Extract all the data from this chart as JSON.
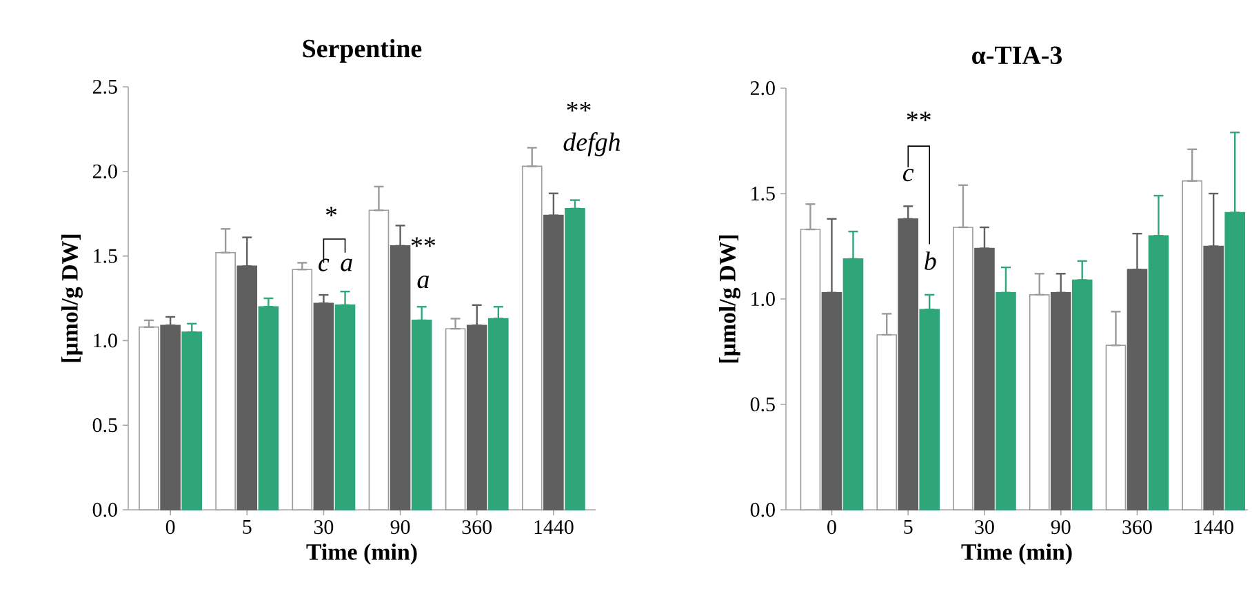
{
  "chart_data": [
    {
      "type": "bar",
      "title": "Serpentine",
      "xlabel": "Time (min)",
      "ylabel": "[μmol/g DW]",
      "categories": [
        "0",
        "5",
        "30",
        "90",
        "360",
        "1440"
      ],
      "series": [
        {
          "color": "#ffffff",
          "values": [
            1.08,
            1.52,
            1.42,
            1.77,
            1.07,
            2.03
          ],
          "errors": [
            [
              1.08,
              1.12
            ],
            [
              1.52,
              1.66
            ],
            [
              1.42,
              1.46
            ],
            [
              1.77,
              1.91
            ],
            [
              1.07,
              1.13
            ],
            [
              2.03,
              2.14
            ]
          ]
        },
        {
          "color": "#5f5f5f",
          "values": [
            1.09,
            1.44,
            1.22,
            1.56,
            1.09,
            1.74
          ],
          "errors": [
            [
              1.09,
              1.14
            ],
            [
              1.44,
              1.61
            ],
            [
              1.22,
              1.27
            ],
            [
              1.56,
              1.68
            ],
            [
              1.09,
              1.21
            ],
            [
              1.74,
              1.87
            ]
          ]
        },
        {
          "color": "#2fa57a",
          "values": [
            1.05,
            1.2,
            1.21,
            1.12,
            1.13,
            1.78
          ],
          "errors": [
            [
              1.05,
              1.1
            ],
            [
              1.2,
              1.25
            ],
            [
              1.21,
              1.29
            ],
            [
              1.12,
              1.2
            ],
            [
              1.13,
              1.2
            ],
            [
              1.78,
              1.83
            ]
          ]
        }
      ],
      "ylim": [
        0,
        2.5
      ],
      "yticks": [
        {
          "value": 0,
          "label": "0.0"
        },
        0.5,
        {
          "value": 1,
          "label": "1.0"
        },
        1.5,
        {
          "value": 2,
          "label": "2.0"
        },
        2.5
      ],
      "annotations": [
        "*",
        "c",
        "a",
        "**",
        "a",
        "**",
        "defgh"
      ]
    },
    {
      "type": "bar",
      "title": "α-TIA-3",
      "xlabel": "Time (min)",
      "ylabel": "[μmol/g DW]",
      "categories": [
        "0",
        "5",
        "30",
        "90",
        "360",
        "1440"
      ],
      "series": [
        {
          "color": "#ffffff",
          "values": [
            1.33,
            0.83,
            1.34,
            1.02,
            0.78,
            1.56
          ],
          "errors": [
            [
              1.33,
              1.45
            ],
            [
              0.83,
              0.93
            ],
            [
              1.34,
              1.54
            ],
            [
              1.02,
              1.12
            ],
            [
              0.78,
              0.94
            ],
            [
              1.56,
              1.71
            ]
          ]
        },
        {
          "color": "#5f5f5f",
          "values": [
            1.03,
            1.38,
            1.24,
            1.03,
            1.14,
            1.25
          ],
          "errors": [
            [
              1.03,
              1.38
            ],
            [
              1.38,
              1.44
            ],
            [
              1.24,
              1.34
            ],
            [
              1.03,
              1.12
            ],
            [
              1.14,
              1.31
            ],
            [
              1.25,
              1.5
            ]
          ]
        },
        {
          "color": "#2fa57a",
          "values": [
            1.19,
            0.95,
            1.03,
            1.09,
            1.3,
            1.41
          ],
          "errors": [
            [
              1.19,
              1.32
            ],
            [
              0.95,
              1.02
            ],
            [
              1.03,
              1.15
            ],
            [
              1.09,
              1.18
            ],
            [
              1.3,
              1.49
            ],
            [
              1.41,
              1.79
            ]
          ]
        }
      ],
      "ylim": [
        0,
        2.0
      ],
      "yticks": [
        {
          "value": 0,
          "label": "0.0"
        },
        0.5,
        {
          "value": 1,
          "label": "1.0"
        },
        1.5,
        {
          "value": 2,
          "label": "2.0"
        }
      ],
      "annotations": [
        "**",
        "c",
        "b"
      ]
    }
  ]
}
